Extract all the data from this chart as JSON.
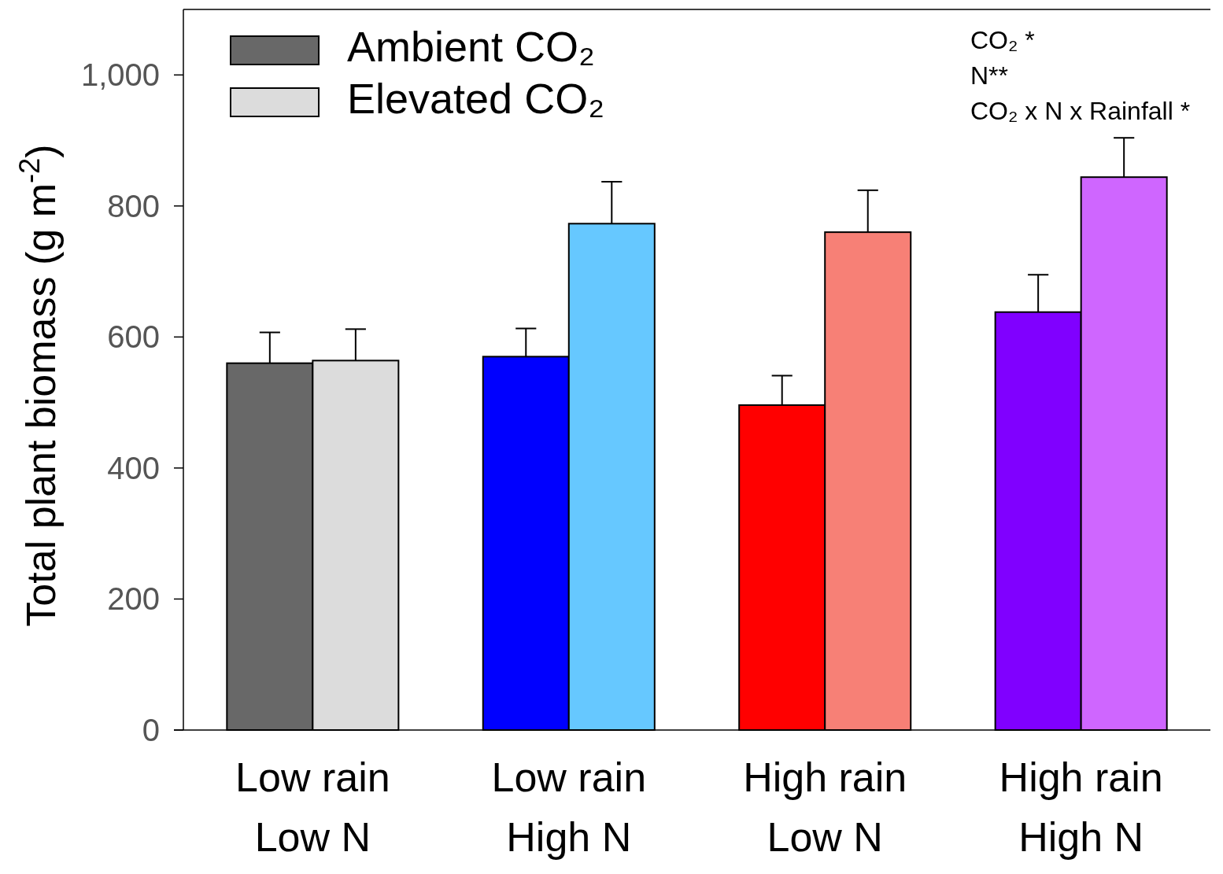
{
  "chart_data": {
    "type": "bar",
    "ylabel": "Total plant biomass (g m$^{-2}$)",
    "categories": [
      "Low rain\nLow N",
      "Low rain\nHigh N",
      "High rain\nLow N",
      "High rain\nHigh N"
    ],
    "series": [
      {
        "name": "Ambient CO₂",
        "color": "#686868",
        "colors": [
          "#686868",
          "#0000ff",
          "#ff0000",
          "#8000ff"
        ],
        "values": [
          560,
          570,
          496,
          638
        ],
        "errors": [
          [
            560,
            607
          ],
          [
            570,
            613
          ],
          [
            496,
            541
          ],
          [
            638,
            695
          ]
        ]
      },
      {
        "name": "Elevated CO₂",
        "color": "#dcdcdc",
        "colors": [
          "#dcdcdc",
          "#66c8ff",
          "#f78076",
          "#cf66ff"
        ],
        "values": [
          564,
          773,
          760,
          844
        ],
        "errors": [
          [
            564,
            612
          ],
          [
            773,
            837
          ],
          [
            760,
            824
          ],
          [
            844,
            904
          ]
        ]
      }
    ],
    "ylim": [
      0,
      1100
    ],
    "yticks": [
      0,
      200,
      400,
      600,
      800,
      {
        "value": 1000,
        "label": "1,000"
      }
    ],
    "legend": "top left",
    "grid": false,
    "annotations": [
      "CO₂ *",
      "N**",
      "CO₂ x N x Rainfall *"
    ]
  }
}
